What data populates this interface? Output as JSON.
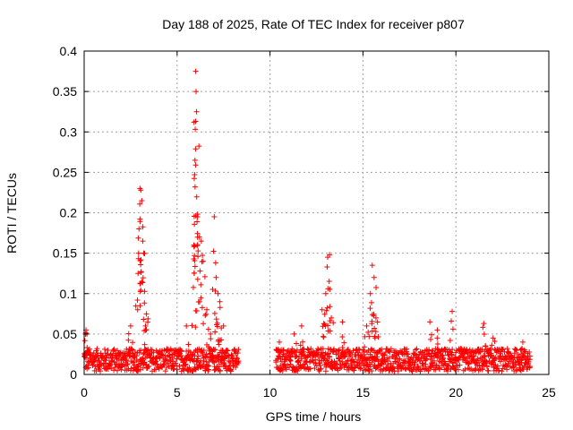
{
  "chart_data": {
    "type": "scatter",
    "title": "Day 188 of 2025, Rate Of TEC Index for receiver p807",
    "xlabel": "GPS time / hours",
    "ylabel": "ROTI / TECUs",
    "xlim": [
      0,
      25
    ],
    "ylim": [
      0,
      0.4
    ],
    "grid": true,
    "x_ticks": [
      "0",
      "5",
      "10",
      "15",
      "20",
      "25"
    ],
    "y_ticks": [
      "0",
      "0.05",
      "0.1",
      "0.15",
      "0.2",
      "0.25",
      "0.3",
      "0.35",
      "0.4"
    ],
    "marker": "+",
    "color": "#ff0000",
    "series": [
      {
        "name": "ROTI",
        "segments": [
          {
            "x_start": 0.0,
            "x_end": 8.3,
            "baseline": 0.018
          },
          {
            "x_start": 10.3,
            "x_end": 24.0,
            "baseline": 0.018
          }
        ],
        "peaks": [
          {
            "x": 0.1,
            "y": 0.055
          },
          {
            "x": 0.15,
            "y": 0.05
          },
          {
            "x": 2.5,
            "y": 0.06
          },
          {
            "x": 2.9,
            "y": 0.125
          },
          {
            "x": 2.95,
            "y": 0.18
          },
          {
            "x": 3.0,
            "y": 0.23
          },
          {
            "x": 3.05,
            "y": 0.228
          },
          {
            "x": 3.1,
            "y": 0.215
          },
          {
            "x": 3.15,
            "y": 0.165
          },
          {
            "x": 3.2,
            "y": 0.15
          },
          {
            "x": 3.35,
            "y": 0.075
          },
          {
            "x": 3.3,
            "y": 0.06
          },
          {
            "x": 5.5,
            "y": 0.06
          },
          {
            "x": 5.9,
            "y": 0.16
          },
          {
            "x": 6.0,
            "y": 0.375
          },
          {
            "x": 6.02,
            "y": 0.35
          },
          {
            "x": 6.05,
            "y": 0.325
          },
          {
            "x": 6.0,
            "y": 0.313
          },
          {
            "x": 6.0,
            "y": 0.279
          },
          {
            "x": 6.0,
            "y": 0.259
          },
          {
            "x": 6.1,
            "y": 0.195
          },
          {
            "x": 6.2,
            "y": 0.17
          },
          {
            "x": 6.3,
            "y": 0.165
          },
          {
            "x": 6.4,
            "y": 0.14
          },
          {
            "x": 6.6,
            "y": 0.08
          },
          {
            "x": 6.8,
            "y": 0.05
          },
          {
            "x": 7.0,
            "y": 0.195
          },
          {
            "x": 7.1,
            "y": 0.12
          },
          {
            "x": 7.2,
            "y": 0.1
          },
          {
            "x": 7.3,
            "y": 0.09
          },
          {
            "x": 7.5,
            "y": 0.06
          },
          {
            "x": 10.5,
            "y": 0.04
          },
          {
            "x": 11.3,
            "y": 0.05
          },
          {
            "x": 11.7,
            "y": 0.06
          },
          {
            "x": 12.8,
            "y": 0.08
          },
          {
            "x": 13.0,
            "y": 0.1
          },
          {
            "x": 13.1,
            "y": 0.145
          },
          {
            "x": 13.2,
            "y": 0.148
          },
          {
            "x": 13.3,
            "y": 0.07
          },
          {
            "x": 13.9,
            "y": 0.065
          },
          {
            "x": 15.2,
            "y": 0.06
          },
          {
            "x": 15.4,
            "y": 0.1
          },
          {
            "x": 15.5,
            "y": 0.135
          },
          {
            "x": 15.6,
            "y": 0.12
          },
          {
            "x": 15.7,
            "y": 0.07
          },
          {
            "x": 18.6,
            "y": 0.065
          },
          {
            "x": 19.0,
            "y": 0.055
          },
          {
            "x": 19.8,
            "y": 0.078
          },
          {
            "x": 21.5,
            "y": 0.063
          },
          {
            "x": 22.0,
            "y": 0.045
          },
          {
            "x": 23.6,
            "y": 0.04
          }
        ]
      }
    ]
  }
}
